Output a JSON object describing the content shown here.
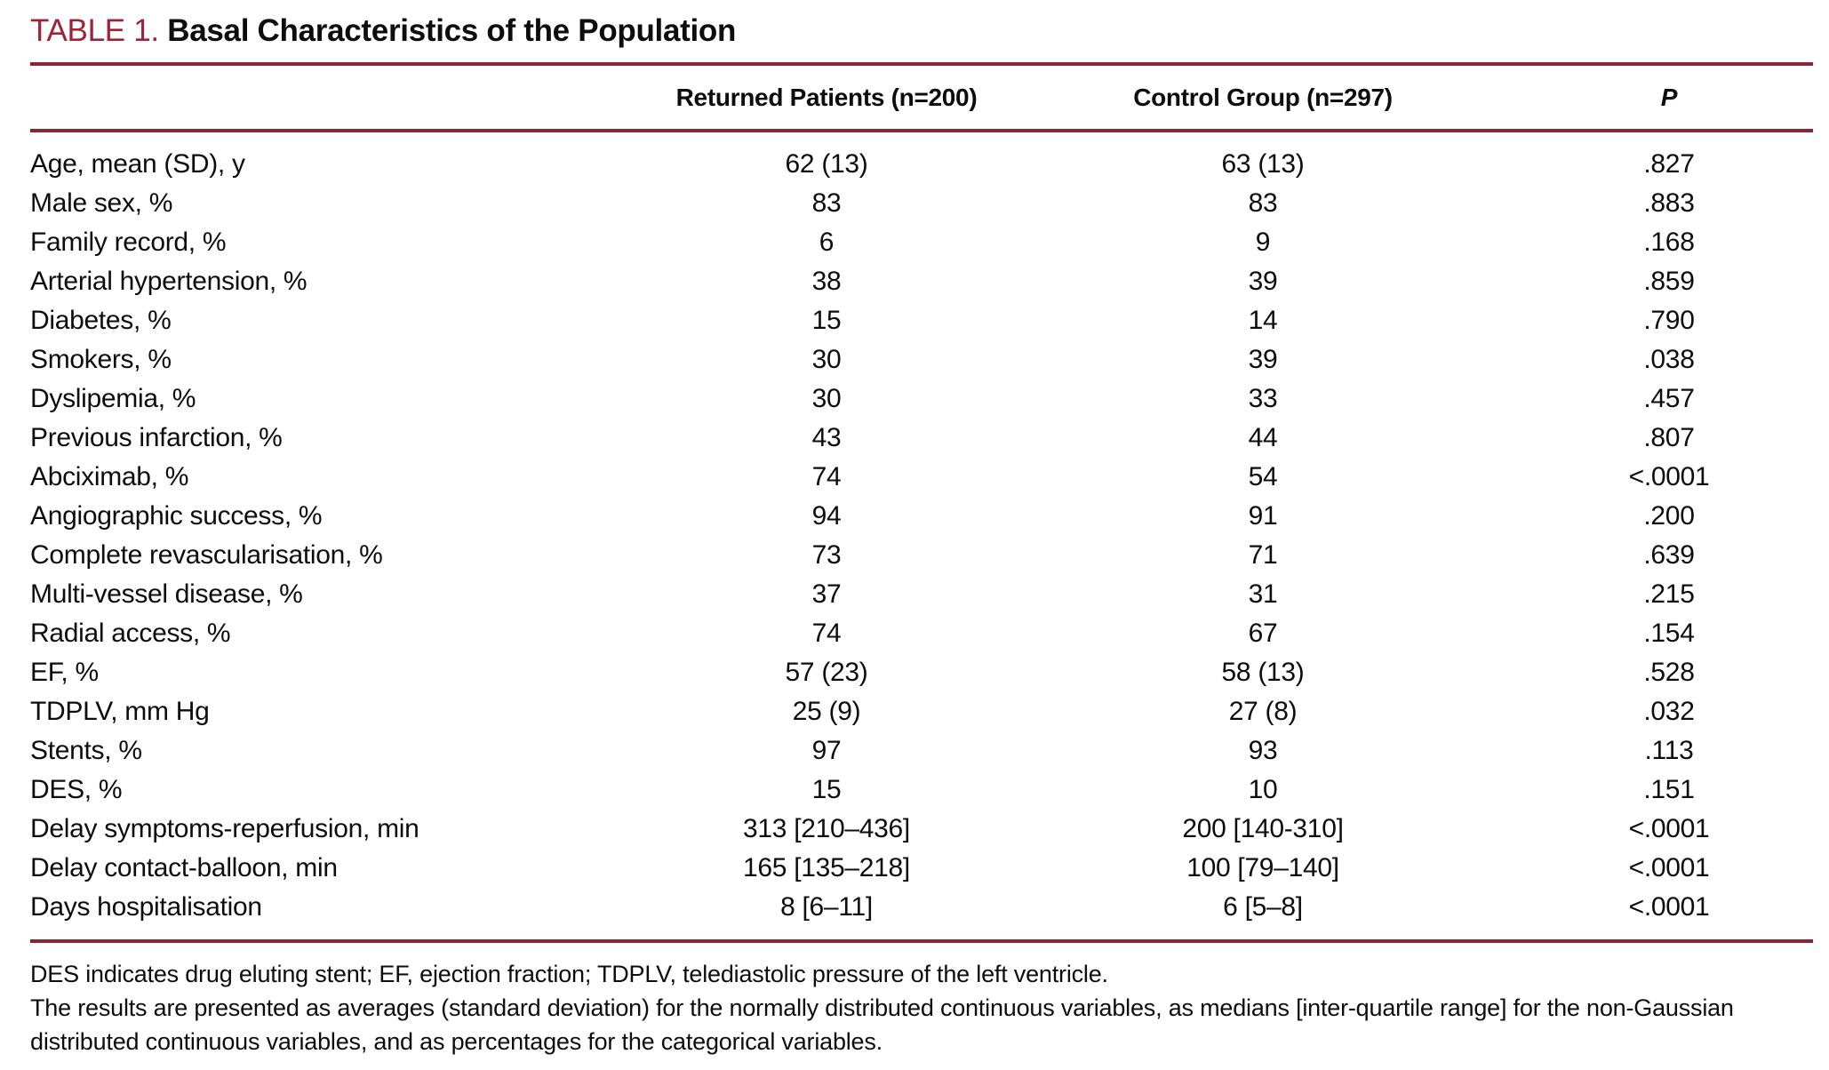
{
  "heading": {
    "table_label": "TABLE 1.",
    "table_title": "Basal Characteristics of the Population"
  },
  "colors": {
    "accent_title": "#9E2339",
    "rule": "#8E2336"
  },
  "table": {
    "columns": [
      {
        "key": "label",
        "label": ""
      },
      {
        "key": "returned",
        "label": "Returned Patients (n=200)"
      },
      {
        "key": "control",
        "label": "Control Group (n=297)"
      },
      {
        "key": "p",
        "label": "P"
      }
    ],
    "rows": [
      {
        "label": "Age, mean (SD), y",
        "returned": "62 (13)",
        "control": "63 (13)",
        "p": ".827"
      },
      {
        "label": "Male sex, %",
        "returned": "83",
        "control": "83",
        "p": ".883"
      },
      {
        "label": "Family record, %",
        "returned": "6",
        "control": "9",
        "p": ".168"
      },
      {
        "label": "Arterial hypertension, %",
        "returned": "38",
        "control": "39",
        "p": ".859"
      },
      {
        "label": "Diabetes, %",
        "returned": "15",
        "control": "14",
        "p": ".790"
      },
      {
        "label": "Smokers, %",
        "returned": "30",
        "control": "39",
        "p": ".038"
      },
      {
        "label": "Dyslipemia, %",
        "returned": "30",
        "control": "33",
        "p": ".457"
      },
      {
        "label": "Previous infarction, %",
        "returned": "43",
        "control": "44",
        "p": ".807"
      },
      {
        "label": "Abciximab, %",
        "returned": "74",
        "control": "54",
        "p": "<.0001"
      },
      {
        "label": "Angiographic success, %",
        "returned": "94",
        "control": "91",
        "p": ".200"
      },
      {
        "label": "Complete revascularisation, %",
        "returned": "73",
        "control": "71",
        "p": ".639"
      },
      {
        "label": "Multi-vessel disease, %",
        "returned": "37",
        "control": "31",
        "p": ".215"
      },
      {
        "label": "Radial access, %",
        "returned": "74",
        "control": "67",
        "p": ".154"
      },
      {
        "label": "EF, %",
        "returned": "57 (23)",
        "control": "58 (13)",
        "p": ".528"
      },
      {
        "label": "TDPLV, mm Hg",
        "returned": "25 (9)",
        "control": "27 (8)",
        "p": ".032"
      },
      {
        "label": "Stents, %",
        "returned": "97",
        "control": "93",
        "p": ".113"
      },
      {
        "label": "DES, %",
        "returned": "15",
        "control": "10",
        "p": ".151"
      },
      {
        "label": "Delay symptoms-reperfusion, min",
        "returned": "313 [210–436]",
        "control": "200 [140-310]",
        "p": "<.0001"
      },
      {
        "label": "Delay contact-balloon, min",
        "returned": "165 [135–218]",
        "control": "100 [79–140]",
        "p": "<.0001"
      },
      {
        "label": "Days hospitalisation",
        "returned": "8 [6–11]",
        "control": "6 [5–8]",
        "p": "<.0001"
      }
    ],
    "footnotes": [
      "DES indicates drug eluting stent; EF, ejection fraction; TDPLV, telediastolic pressure of the left ventricle.",
      "The results are presented as averages (standard deviation) for the normally distributed continuous variables, as medians [inter-quartile range] for the non-Gaussian distributed continuous variables, and as percentages for the categorical variables."
    ]
  }
}
